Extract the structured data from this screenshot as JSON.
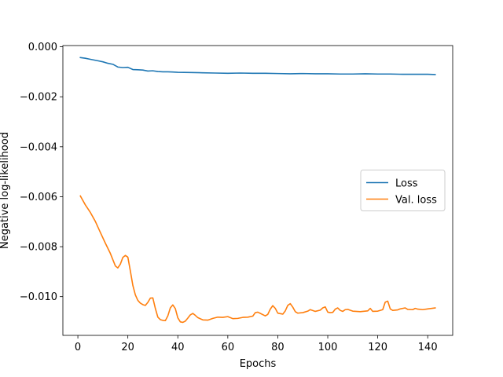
{
  "chart_data": {
    "type": "line",
    "xlabel": "Epochs",
    "ylabel": "Negative log-likelihood",
    "xlim": [
      -6,
      150
    ],
    "ylim": [
      -0.01155,
      5e-05
    ],
    "xticks": [
      0,
      20,
      40,
      60,
      80,
      100,
      120,
      140
    ],
    "xtick_labels": [
      "0",
      "20",
      "40",
      "60",
      "80",
      "100",
      "120",
      "140"
    ],
    "yticks": [
      0.0,
      -0.002,
      -0.004,
      -0.006,
      -0.008,
      -0.01
    ],
    "ytick_labels": [
      "0.000",
      "−0.002",
      "−0.004",
      "−0.006",
      "−0.008",
      "−0.010"
    ],
    "grid": false,
    "legend_position": "center-right",
    "series": [
      {
        "name": "Loss",
        "color": "#1f77b4",
        "points": [
          [
            1,
            -0.00043
          ],
          [
            3,
            -0.00046
          ],
          [
            5,
            -0.0005
          ],
          [
            8,
            -0.00056
          ],
          [
            10,
            -0.0006
          ],
          [
            12,
            -0.00066
          ],
          [
            14,
            -0.0007
          ],
          [
            16,
            -0.00081
          ],
          [
            18,
            -0.00083
          ],
          [
            20,
            -0.00082
          ],
          [
            22,
            -0.00091
          ],
          [
            24,
            -0.00092
          ],
          [
            26,
            -0.00093
          ],
          [
            28,
            -0.00097
          ],
          [
            30,
            -0.00096
          ],
          [
            32,
            -0.00099
          ],
          [
            34,
            -0.001
          ],
          [
            36,
            -0.001
          ],
          [
            38,
            -0.00101
          ],
          [
            40,
            -0.00102
          ],
          [
            45,
            -0.00103
          ],
          [
            50,
            -0.00104
          ],
          [
            55,
            -0.00105
          ],
          [
            60,
            -0.00106
          ],
          [
            65,
            -0.00105
          ],
          [
            70,
            -0.00106
          ],
          [
            75,
            -0.00106
          ],
          [
            80,
            -0.00107
          ],
          [
            85,
            -0.00108
          ],
          [
            90,
            -0.00107
          ],
          [
            95,
            -0.00108
          ],
          [
            100,
            -0.00108
          ],
          [
            105,
            -0.00109
          ],
          [
            110,
            -0.00109
          ],
          [
            115,
            -0.00108
          ],
          [
            120,
            -0.00109
          ],
          [
            125,
            -0.00109
          ],
          [
            130,
            -0.0011
          ],
          [
            135,
            -0.0011
          ],
          [
            140,
            -0.0011
          ],
          [
            143,
            -0.00111
          ]
        ]
      },
      {
        "name": "Val. loss",
        "color": "#ff7f0e",
        "points": [
          [
            1,
            -0.00597
          ],
          [
            3,
            -0.00633
          ],
          [
            5,
            -0.00663
          ],
          [
            7,
            -0.00699
          ],
          [
            9,
            -0.00743
          ],
          [
            11,
            -0.00786
          ],
          [
            13,
            -0.00827
          ],
          [
            15,
            -0.00877
          ],
          [
            16,
            -0.00885
          ],
          [
            17,
            -0.0087
          ],
          [
            18,
            -0.00843
          ],
          [
            19,
            -0.00835
          ],
          [
            20,
            -0.00842
          ],
          [
            21,
            -0.00897
          ],
          [
            22,
            -0.00955
          ],
          [
            23,
            -0.00993
          ],
          [
            24,
            -0.01015
          ],
          [
            25,
            -0.01026
          ],
          [
            26,
            -0.01032
          ],
          [
            27,
            -0.01035
          ],
          [
            28,
            -0.01023
          ],
          [
            29,
            -0.01006
          ],
          [
            30,
            -0.01005
          ],
          [
            31,
            -0.01047
          ],
          [
            32,
            -0.01082
          ],
          [
            33,
            -0.01092
          ],
          [
            34,
            -0.01095
          ],
          [
            35,
            -0.01096
          ],
          [
            36,
            -0.01077
          ],
          [
            37,
            -0.01045
          ],
          [
            38,
            -0.01033
          ],
          [
            39,
            -0.01048
          ],
          [
            40,
            -0.01085
          ],
          [
            41,
            -0.01101
          ],
          [
            42,
            -0.01103
          ],
          [
            43,
            -0.01098
          ],
          [
            44,
            -0.01086
          ],
          [
            45,
            -0.01073
          ],
          [
            46,
            -0.01067
          ],
          [
            47,
            -0.01075
          ],
          [
            48,
            -0.01084
          ],
          [
            50,
            -0.01093
          ],
          [
            52,
            -0.01094
          ],
          [
            54,
            -0.01087
          ],
          [
            56,
            -0.01082
          ],
          [
            58,
            -0.01083
          ],
          [
            60,
            -0.0108
          ],
          [
            62,
            -0.01088
          ],
          [
            64,
            -0.01087
          ],
          [
            66,
            -0.01083
          ],
          [
            68,
            -0.01082
          ],
          [
            70,
            -0.01078
          ],
          [
            71,
            -0.01064
          ],
          [
            72,
            -0.01062
          ],
          [
            73,
            -0.01067
          ],
          [
            75,
            -0.01077
          ],
          [
            76,
            -0.01071
          ],
          [
            77,
            -0.0105
          ],
          [
            78,
            -0.01036
          ],
          [
            79,
            -0.01047
          ],
          [
            80,
            -0.01066
          ],
          [
            82,
            -0.0107
          ],
          [
            83,
            -0.01057
          ],
          [
            84,
            -0.01035
          ],
          [
            85,
            -0.01028
          ],
          [
            86,
            -0.01042
          ],
          [
            87,
            -0.0106
          ],
          [
            88,
            -0.01066
          ],
          [
            90,
            -0.01064
          ],
          [
            92,
            -0.01058
          ],
          [
            93,
            -0.01052
          ],
          [
            95,
            -0.01059
          ],
          [
            97,
            -0.01054
          ],
          [
            98,
            -0.01045
          ],
          [
            99,
            -0.01041
          ],
          [
            100,
            -0.01062
          ],
          [
            101,
            -0.01064
          ],
          [
            102,
            -0.01063
          ],
          [
            103,
            -0.0105
          ],
          [
            104,
            -0.01045
          ],
          [
            105,
            -0.01055
          ],
          [
            106,
            -0.01059
          ],
          [
            107,
            -0.01052
          ],
          [
            108,
            -0.01051
          ],
          [
            110,
            -0.01058
          ],
          [
            113,
            -0.0106
          ],
          [
            116,
            -0.01057
          ],
          [
            117,
            -0.01047
          ],
          [
            118,
            -0.01059
          ],
          [
            120,
            -0.01058
          ],
          [
            122,
            -0.01052
          ],
          [
            123,
            -0.01022
          ],
          [
            124,
            -0.01018
          ],
          [
            125,
            -0.01049
          ],
          [
            126,
            -0.01055
          ],
          [
            128,
            -0.01053
          ],
          [
            129,
            -0.01049
          ],
          [
            131,
            -0.01045
          ],
          [
            132,
            -0.01051
          ],
          [
            134,
            -0.01052
          ],
          [
            135,
            -0.01047
          ],
          [
            136,
            -0.0105
          ],
          [
            138,
            -0.01052
          ],
          [
            140,
            -0.01049
          ],
          [
            143,
            -0.01045
          ]
        ]
      }
    ]
  }
}
